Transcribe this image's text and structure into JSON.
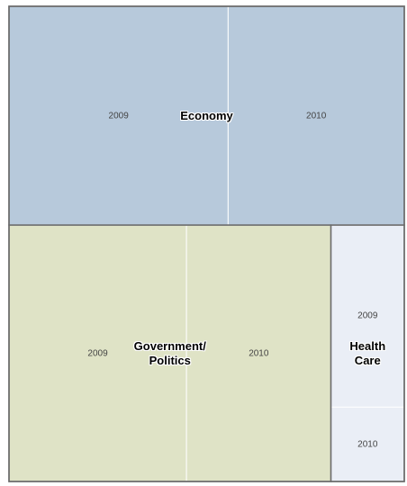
{
  "chart_data": {
    "type": "treemap",
    "groups": [
      {
        "name": "Economy",
        "color": "#b7c9db",
        "children": [
          {
            "name": "2009",
            "value": 25.5
          },
          {
            "name": "2010",
            "value": 20.5
          }
        ]
      },
      {
        "name": "Government/ Politics",
        "color": "#dfe3c6",
        "children": [
          {
            "name": "2009",
            "value": 24.2
          },
          {
            "name": "2010",
            "value": 19.7
          }
        ]
      },
      {
        "name": "Health Care",
        "color": "#eaeef6",
        "children": [
          {
            "name": "2009",
            "value": 7.1
          },
          {
            "name": "2010",
            "value": 2.9
          }
        ]
      }
    ]
  }
}
